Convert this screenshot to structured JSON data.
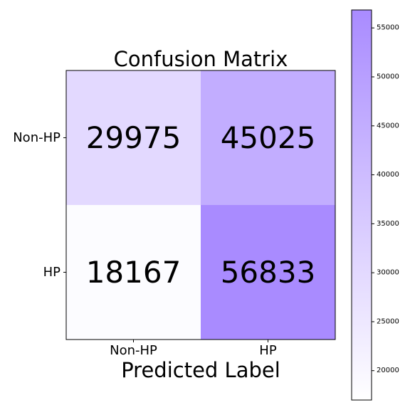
{
  "chart_data": {
    "type": "heatmap",
    "title": "Confusion Matrix",
    "xlabel": "Predicted Label",
    "ylabel": "",
    "x_categories": [
      "Non-HP",
      "HP"
    ],
    "y_categories": [
      "Non-HP",
      "HP"
    ],
    "values": [
      [
        29975,
        45025
      ],
      [
        18167,
        56833
      ]
    ],
    "colorbar": {
      "range": [
        17000,
        56833
      ],
      "ticks": [
        20000,
        25000,
        30000,
        35000,
        40000,
        45000,
        50000,
        55000
      ],
      "color_low": "#ffffff",
      "color_high": "#a98bff"
    }
  }
}
